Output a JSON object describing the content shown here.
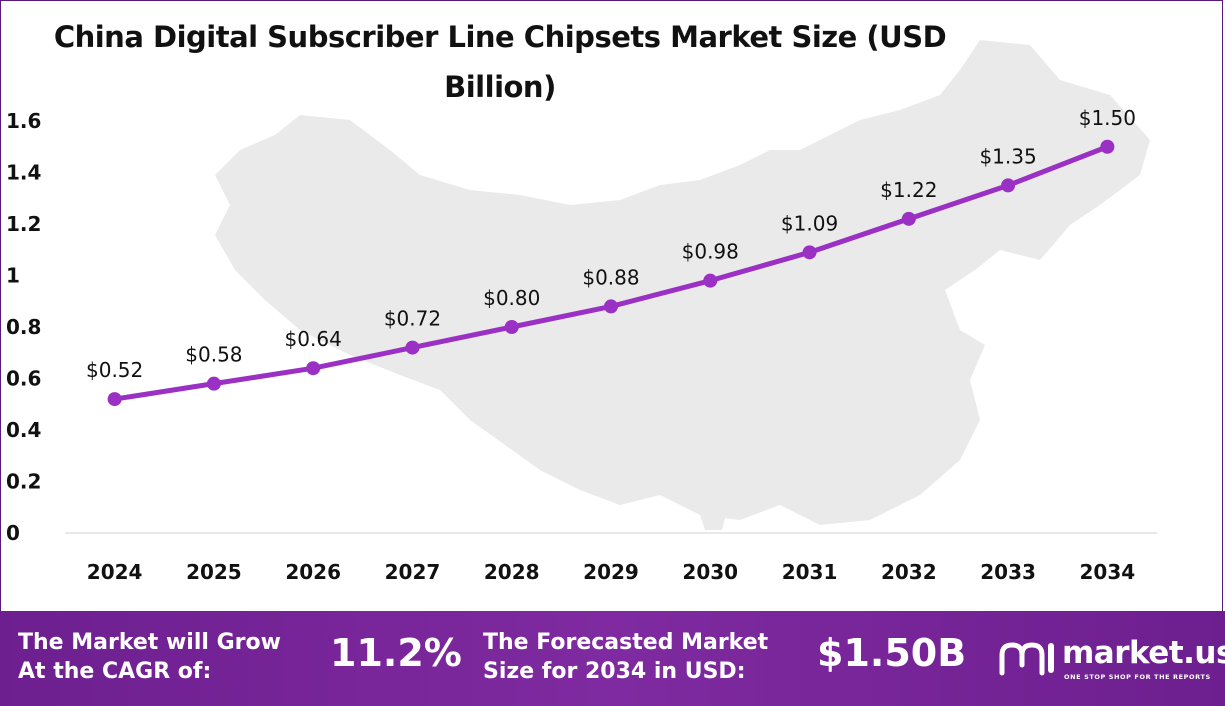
{
  "chart_data": {
    "type": "line",
    "title": "China Digital Subscriber Line Chipsets Market Size (USD Billion)",
    "title_line1": "China Digital Subscriber Line Chipsets Market Size (USD",
    "title_line2": "Billion)",
    "categories": [
      "2024",
      "2025",
      "2026",
      "2027",
      "2028",
      "2029",
      "2030",
      "2031",
      "2032",
      "2033",
      "2034"
    ],
    "values": [
      0.52,
      0.58,
      0.64,
      0.72,
      0.8,
      0.88,
      0.98,
      1.09,
      1.22,
      1.35,
      1.5
    ],
    "data_labels": [
      "$0.52",
      "$0.58",
      "$0.64",
      "$0.72",
      "$0.80",
      "$0.88",
      "$0.98",
      "$1.09",
      "$1.22",
      "$1.35",
      "$1.50"
    ],
    "y_ticks": [
      0,
      0.2,
      0.4,
      0.6,
      0.8,
      1,
      1.2,
      1.4,
      1.6
    ],
    "y_tick_labels": [
      "0",
      "0.2",
      "0.4",
      "0.6",
      "0.8",
      "1",
      "1.2",
      "1.4",
      "1.6"
    ],
    "ylim": [
      0,
      1.6
    ],
    "xlabel": "",
    "ylabel": "",
    "series_color": "#9b30c4",
    "grid": false
  },
  "footer": {
    "cagr_label": "The Market will Grow\nAt the CAGR of:",
    "cagr_value": "11.2%",
    "forecast_label": "The Forecasted Market\nSize for 2034 in USD:",
    "forecast_value": "$1.50B",
    "brand_name": "market.us",
    "brand_tagline": "ONE STOP SHOP FOR THE REPORTS",
    "background_color": "#7a2699"
  }
}
